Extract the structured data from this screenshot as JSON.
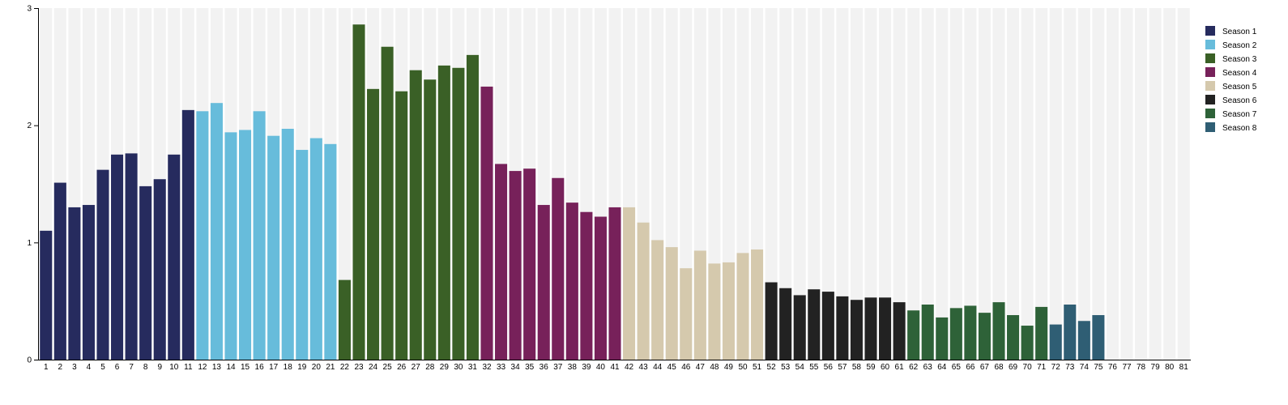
{
  "chart_data": {
    "type": "bar",
    "title": "",
    "xlabel": "",
    "ylabel": "",
    "ylim": [
      0,
      3
    ],
    "yticks": [
      0,
      1,
      2,
      3
    ],
    "grid": false,
    "background_columns": true,
    "legend_placement": "top-right",
    "categories": [
      "1",
      "2",
      "3",
      "4",
      "5",
      "6",
      "7",
      "8",
      "9",
      "10",
      "11",
      "12",
      "13",
      "14",
      "15",
      "16",
      "17",
      "18",
      "19",
      "20",
      "21",
      "22",
      "23",
      "24",
      "25",
      "26",
      "27",
      "28",
      "29",
      "30",
      "31",
      "32",
      "33",
      "34",
      "35",
      "36",
      "37",
      "38",
      "39",
      "40",
      "41",
      "42",
      "43",
      "44",
      "45",
      "46",
      "47",
      "48",
      "49",
      "50",
      "51",
      "52",
      "53",
      "54",
      "55",
      "56",
      "57",
      "58",
      "59",
      "60",
      "61",
      "62",
      "63",
      "64",
      "65",
      "66",
      "67",
      "68",
      "69",
      "70",
      "71",
      "72",
      "73",
      "74",
      "75",
      "76",
      "77",
      "78",
      "79",
      "80",
      "81"
    ],
    "values": [
      1.1,
      1.51,
      1.3,
      1.32,
      1.62,
      1.75,
      1.76,
      1.48,
      1.54,
      1.75,
      2.13,
      2.12,
      2.19,
      1.94,
      1.96,
      2.12,
      1.91,
      1.97,
      1.79,
      1.89,
      1.84,
      0.68,
      2.86,
      2.31,
      2.67,
      2.29,
      2.47,
      2.39,
      2.51,
      2.49,
      2.6,
      2.33,
      1.67,
      1.61,
      1.63,
      1.32,
      1.55,
      1.34,
      1.26,
      1.22,
      1.3,
      1.3,
      1.17,
      1.02,
      0.96,
      0.78,
      0.93,
      0.82,
      0.83,
      0.91,
      0.94,
      0.66,
      0.61,
      0.55,
      0.6,
      0.58,
      0.54,
      0.51,
      0.53,
      0.53,
      0.49,
      0.42,
      0.47,
      0.36,
      0.44,
      0.46,
      0.4,
      0.49,
      0.38,
      0.29,
      0.45,
      0.3,
      0.47,
      0.33,
      0.38,
      0,
      0,
      0,
      0,
      0,
      0
    ],
    "season_of_episode": [
      1,
      1,
      1,
      1,
      1,
      1,
      1,
      1,
      1,
      1,
      1,
      2,
      2,
      2,
      2,
      2,
      2,
      2,
      2,
      2,
      2,
      3,
      3,
      3,
      3,
      3,
      3,
      3,
      3,
      3,
      3,
      4,
      4,
      4,
      4,
      4,
      4,
      4,
      4,
      4,
      4,
      5,
      5,
      5,
      5,
      5,
      5,
      5,
      5,
      5,
      5,
      6,
      6,
      6,
      6,
      6,
      6,
      6,
      6,
      6,
      6,
      7,
      7,
      7,
      7,
      7,
      7,
      7,
      7,
      7,
      7,
      8,
      8,
      8,
      8,
      0,
      0,
      0,
      0,
      0,
      0
    ],
    "series": [
      {
        "name": "Season 1",
        "color": "#262b5e"
      },
      {
        "name": "Season 2",
        "color": "#67bcdb"
      },
      {
        "name": "Season 3",
        "color": "#3a6026"
      },
      {
        "name": "Season 4",
        "color": "#77215a"
      },
      {
        "name": "Season 5",
        "color": "#d5c9ad"
      },
      {
        "name": "Season 6",
        "color": "#222222"
      },
      {
        "name": "Season 7",
        "color": "#2e6238"
      },
      {
        "name": "Season 8",
        "color": "#2f5e74"
      }
    ],
    "colors": {
      "column_background": "#f2f2f2",
      "axis": "#000000"
    }
  }
}
